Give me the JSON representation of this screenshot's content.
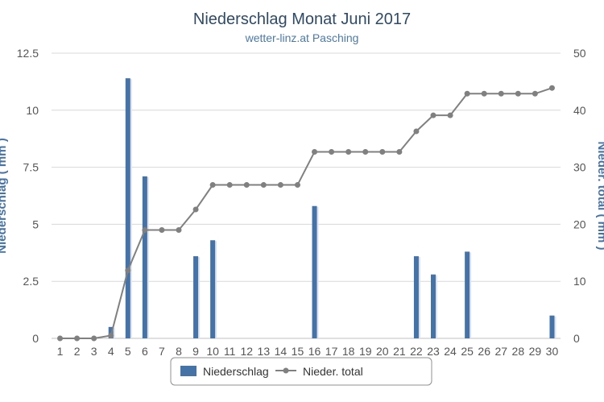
{
  "chart_data": {
    "type": "bar",
    "title": "Niederschlag Monat Juni 2017",
    "subtitle": "wetter-linz.at Pasching",
    "categories": [
      "1",
      "2",
      "3",
      "4",
      "5",
      "6",
      "7",
      "8",
      "9",
      "10",
      "11",
      "12",
      "13",
      "14",
      "15",
      "16",
      "17",
      "18",
      "19",
      "20",
      "21",
      "22",
      "23",
      "24",
      "25",
      "26",
      "27",
      "28",
      "29",
      "30"
    ],
    "y_left": {
      "label": "Niederschlag ( mm )",
      "ylim": [
        0,
        12.5
      ],
      "ticks": [
        "0",
        "2.5",
        "5",
        "7.5",
        "10",
        "12.5"
      ]
    },
    "y_right": {
      "label": "Nieder. total ( mm )",
      "ylim": [
        0,
        50
      ],
      "ticks": [
        "0",
        "10",
        "20",
        "30",
        "40",
        "50"
      ]
    },
    "series": [
      {
        "name": "Niederschlag",
        "type": "bar",
        "axis": "left",
        "color": "#4572a7",
        "values": [
          0,
          0,
          0,
          0.5,
          11.4,
          7.1,
          0,
          0,
          3.6,
          4.3,
          0,
          0,
          0,
          0,
          0,
          5.8,
          0,
          0,
          0,
          0,
          0,
          3.6,
          2.8,
          0,
          3.8,
          0,
          0,
          0,
          0,
          1.0
        ]
      },
      {
        "name": "Nieder. total",
        "type": "line",
        "axis": "right",
        "color": "#808080",
        "values": [
          0,
          0,
          0,
          0.5,
          11.9,
          19.0,
          19.0,
          19.0,
          22.6,
          26.9,
          26.9,
          26.9,
          26.9,
          26.9,
          26.9,
          32.7,
          32.7,
          32.7,
          32.7,
          32.7,
          32.7,
          36.3,
          39.1,
          39.1,
          42.9,
          42.9,
          42.9,
          42.9,
          42.9,
          43.9
        ]
      }
    ],
    "grid": true,
    "legend": "bottom-center"
  }
}
